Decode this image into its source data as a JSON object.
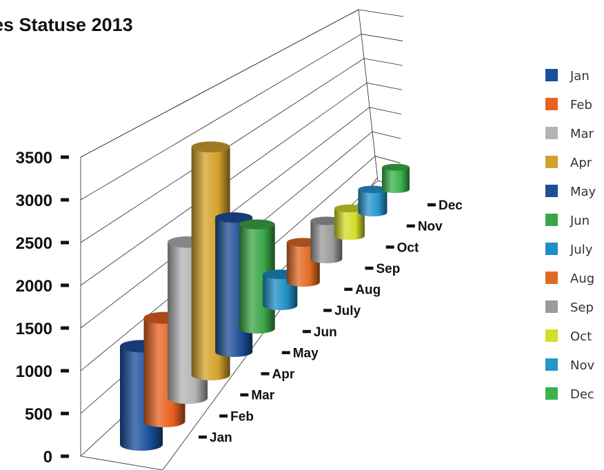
{
  "chart_data": {
    "type": "bar",
    "title": "es Statuse 2013",
    "xlabel": "",
    "ylabel": "",
    "categories": [
      "Jan",
      "Feb",
      "Mar",
      "Apr",
      "May",
      "Jun",
      "July",
      "Aug",
      "Sep",
      "Oct",
      "Nov",
      "Dec"
    ],
    "values": [
      1150,
      1250,
      1950,
      2950,
      1800,
      1450,
      450,
      600,
      600,
      450,
      400,
      400
    ],
    "ylim": [
      0,
      3500
    ],
    "yticks": [
      "0",
      "500",
      "1000",
      "1500",
      "2000",
      "2500",
      "3000",
      "3500"
    ],
    "grid": true,
    "legend_position": "right",
    "legend": [
      "Jan",
      "Feb",
      "Mar",
      "Apr",
      "May",
      "Jun",
      "July",
      "Aug",
      "Sep",
      "Oct",
      "Nov",
      "Dec"
    ],
    "colors": [
      "#1a4f9c",
      "#e8611f",
      "#b3b3b3",
      "#d4a12a",
      "#1d4d97",
      "#3aa648",
      "#1d8fc4",
      "#e06a23",
      "#9b9b9b",
      "#d5dc2a",
      "#2795cc",
      "#3ab34a"
    ]
  }
}
